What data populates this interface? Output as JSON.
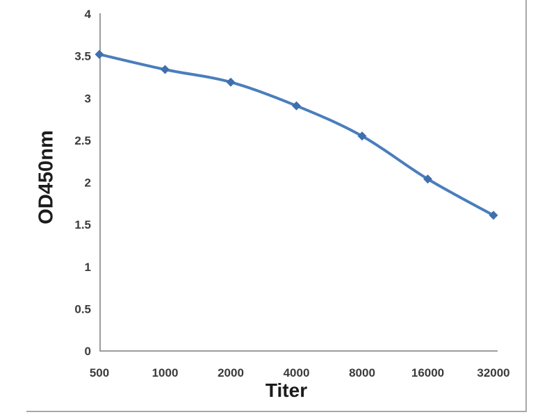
{
  "chart_data": {
    "type": "line",
    "title": "",
    "xlabel": "Titer",
    "ylabel": "OD450nm",
    "categories": [
      "500",
      "1000",
      "2000",
      "4000",
      "8000",
      "16000",
      "32000"
    ],
    "series": [
      {
        "name": "OD450nm",
        "values": [
          3.52,
          3.34,
          3.19,
          2.91,
          2.55,
          2.04,
          1.61
        ]
      }
    ],
    "y_ticks": [
      "0",
      "0.5",
      "1",
      "1.5",
      "2",
      "2.5",
      "3",
      "3.5",
      "4"
    ],
    "ylim": [
      0,
      4
    ],
    "grid": false,
    "legend": "none",
    "smooth": true,
    "marker": "diamond",
    "line_color": "#4a7ebc",
    "marker_color": "#3f6fae",
    "axis_color": "#9c9c9c",
    "border_color": "#a8a8a8",
    "tick_label_color": "#3b3b3b",
    "axis_title_color": "#1c1c1c"
  }
}
